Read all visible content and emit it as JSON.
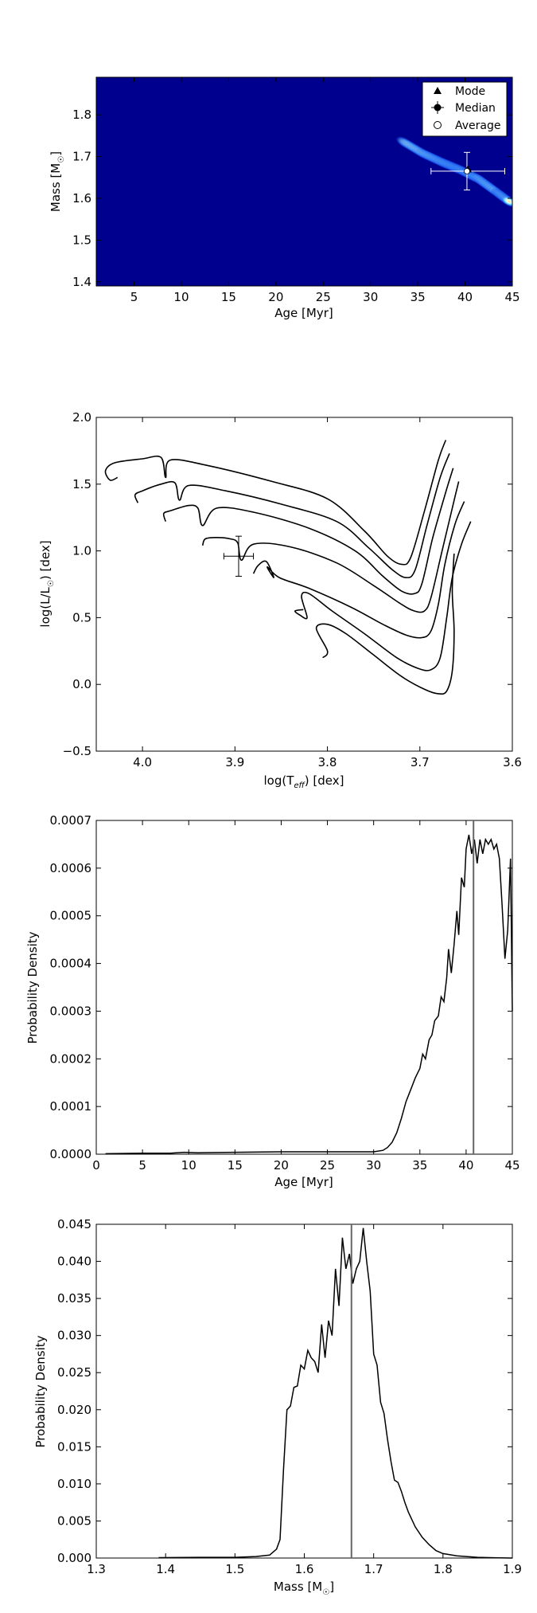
{
  "chart_data": [
    {
      "type": "heatmap",
      "xlabel": "Age [Myr]",
      "ylabel": "Mass [M",
      "ylabel_sub": "☉",
      "ylabel_end": "]",
      "xlim": [
        1,
        45
      ],
      "ylim": [
        1.39,
        1.89
      ],
      "xticks": [
        5,
        10,
        15,
        20,
        25,
        30,
        35,
        40,
        45
      ],
      "yticks": [
        1.4,
        1.5,
        1.6,
        1.7,
        1.8
      ],
      "background_color": "#00008f",
      "legend": {
        "placement": "top-right",
        "entries": [
          "Mode",
          "Median",
          "Average"
        ]
      },
      "band": [
        [
          33.5,
          1.735
        ],
        [
          35.5,
          1.708
        ],
        [
          37.5,
          1.687
        ],
        [
          39.5,
          1.668
        ],
        [
          41.5,
          1.645
        ],
        [
          43.5,
          1.612
        ],
        [
          44.8,
          1.59
        ]
      ],
      "band_weights": [
        0.2,
        0.55,
        0.85,
        1.0,
        0.9,
        0.7,
        0.5
      ],
      "markers": {
        "mode": {
          "x": 40.3,
          "y": 1.668
        },
        "median": {
          "x": 40.2,
          "y": 1.665,
          "xerr": [
            3.8,
            4.0
          ],
          "yerr": [
            0.045,
            0.045
          ]
        },
        "average": {
          "x": 40.2,
          "y": 1.665
        }
      }
    },
    {
      "type": "line",
      "xlabel": "log(T",
      "xlabel_sub": "eff",
      "xlabel_end": ") [dex]",
      "ylabel": "log(L/L",
      "ylabel_sub": "☉",
      "ylabel_end": ") [dex]",
      "xlim": [
        4.05,
        3.6
      ],
      "ylim": [
        -0.5,
        2.0
      ],
      "xticks": [
        4.0,
        3.9,
        3.8,
        3.7,
        3.6
      ],
      "yticks": [
        -0.5,
        0.0,
        0.5,
        1.0,
        1.5,
        2.0
      ],
      "tick_labels_x": [
        "4.0",
        "3.9",
        "3.8",
        "3.7",
        "3.6"
      ],
      "tick_labels_y": [
        "−0.5",
        "0.0",
        "0.5",
        "1.0",
        "1.5",
        "2.0"
      ],
      "series": [
        {
          "x": [
            4.027,
            4.035,
            4.04,
            4.03,
            4.0,
            3.98,
            3.975,
            3.97,
            3.93,
            3.86,
            3.8,
            3.76,
            3.735,
            3.72,
            3.71,
            3.695,
            3.68,
            3.672
          ],
          "y": [
            1.55,
            1.53,
            1.6,
            1.66,
            1.69,
            1.7,
            1.55,
            1.68,
            1.64,
            1.52,
            1.39,
            1.15,
            0.96,
            0.9,
            0.95,
            1.3,
            1.68,
            1.83
          ]
        },
        {
          "x": [
            4.005,
            4.008,
            4.0,
            3.98,
            3.965,
            3.96,
            3.95,
            3.91,
            3.85,
            3.79,
            3.755,
            3.73,
            3.715,
            3.705,
            3.692,
            3.678,
            3.668
          ],
          "y": [
            1.36,
            1.42,
            1.45,
            1.5,
            1.51,
            1.38,
            1.49,
            1.45,
            1.35,
            1.22,
            1.02,
            0.86,
            0.8,
            0.86,
            1.2,
            1.55,
            1.73
          ]
        },
        {
          "x": [
            3.975,
            3.977,
            3.97,
            3.95,
            3.94,
            3.935,
            3.92,
            3.88,
            3.82,
            3.77,
            3.74,
            3.72,
            3.706,
            3.698,
            3.686,
            3.672,
            3.664
          ],
          "y": [
            1.22,
            1.28,
            1.3,
            1.34,
            1.32,
            1.19,
            1.32,
            1.29,
            1.17,
            1.0,
            0.81,
            0.7,
            0.68,
            0.75,
            1.1,
            1.44,
            1.62
          ]
        },
        {
          "x": [
            3.935,
            3.932,
            3.92,
            3.905,
            3.897,
            3.893,
            3.88,
            3.84,
            3.79,
            3.75,
            3.72,
            3.706,
            3.695,
            3.688,
            3.676,
            3.665,
            3.658
          ],
          "y": [
            1.04,
            1.09,
            1.1,
            1.09,
            1.06,
            0.93,
            1.05,
            1.03,
            0.91,
            0.74,
            0.6,
            0.55,
            0.55,
            0.65,
            1.0,
            1.32,
            1.52
          ]
        },
        {
          "x": [
            3.88,
            3.875,
            3.866,
            3.858,
            3.865,
            3.852,
            3.82,
            3.775,
            3.74,
            3.715,
            3.698,
            3.688,
            3.68,
            3.673,
            3.662,
            3.652
          ],
          "y": [
            0.83,
            0.89,
            0.92,
            0.8,
            0.88,
            0.8,
            0.72,
            0.58,
            0.45,
            0.37,
            0.35,
            0.4,
            0.6,
            0.9,
            1.2,
            1.37
          ]
        },
        {
          "x": [
            3.826,
            3.835,
            3.83,
            3.822,
            3.828,
            3.82,
            3.795,
            3.76,
            3.725,
            3.702,
            3.688,
            3.678,
            3.671,
            3.665,
            3.655,
            3.645
          ],
          "y": [
            0.56,
            0.55,
            0.52,
            0.5,
            0.66,
            0.68,
            0.55,
            0.38,
            0.2,
            0.12,
            0.11,
            0.2,
            0.5,
            0.8,
            1.05,
            1.22
          ]
        },
        {
          "x": [
            3.805,
            3.8,
            3.812,
            3.8,
            3.78,
            3.75,
            3.72,
            3.694,
            3.68,
            3.671,
            3.665,
            3.663,
            3.665,
            3.663
          ],
          "y": [
            0.2,
            0.25,
            0.42,
            0.45,
            0.38,
            0.22,
            0.06,
            -0.04,
            -0.07,
            -0.05,
            0.1,
            0.4,
            0.7,
            0.98
          ]
        }
      ],
      "errorbar": {
        "x": 3.896,
        "y": 0.96,
        "xerr": 0.016,
        "yerr": 0.15
      }
    },
    {
      "type": "line",
      "xlabel": "Age [Myr]",
      "ylabel": "Probability Density",
      "xlim": [
        0,
        45
      ],
      "ylim": [
        0,
        0.0007
      ],
      "xticks": [
        0,
        5,
        10,
        15,
        20,
        25,
        30,
        35,
        40,
        45
      ],
      "yticks": [
        0,
        0.0001,
        0.0002,
        0.0003,
        0.0004,
        0.0005,
        0.0006,
        0.0007
      ],
      "tick_labels_y": [
        "0.0000",
        "0.0001",
        "0.0002",
        "0.0003",
        "0.0004",
        "0.0005",
        "0.0006",
        "0.0007"
      ],
      "vline": 40.8,
      "x": [
        1,
        5,
        8,
        9.5,
        11,
        15,
        20,
        25,
        30,
        31,
        31.5,
        32,
        32.5,
        33,
        33.5,
        34,
        34.5,
        35,
        35.3,
        35.6,
        36,
        36.3,
        36.6,
        37,
        37.3,
        37.6,
        37.9,
        38.1,
        38.4,
        38.7,
        39,
        39.2,
        39.5,
        39.8,
        40,
        40.3,
        40.6,
        40.9,
        41.2,
        41.5,
        41.8,
        42.1,
        42.4,
        42.7,
        43,
        43.3,
        43.6,
        43.9,
        44.2,
        44.5,
        44.8,
        45
      ],
      "y": [
        1e-06,
        2e-06,
        2e-06,
        4e-06,
        3e-06,
        4e-06,
        5e-06,
        5e-06,
        5e-06,
        8e-06,
        1.4e-05,
        2.5e-05,
        4.5e-05,
        7.5e-05,
        0.00011,
        0.000135,
        0.00016,
        0.00018,
        0.00021,
        0.0002,
        0.00024,
        0.00025,
        0.00028,
        0.00029,
        0.00033,
        0.00032,
        0.00037,
        0.00043,
        0.00038,
        0.00044,
        0.00051,
        0.00046,
        0.00058,
        0.00056,
        0.00064,
        0.00067,
        0.00063,
        0.00066,
        0.00061,
        0.00066,
        0.00063,
        0.00066,
        0.00065,
        0.00066,
        0.00064,
        0.00065,
        0.00062,
        0.00052,
        0.00041,
        0.00047,
        0.00062,
        0.0003
      ]
    },
    {
      "type": "line",
      "xlabel": "Mass [M",
      "xlabel_sub": "☉",
      "xlabel_end": "]",
      "ylabel": "Probability Density",
      "xlim": [
        1.3,
        1.9
      ],
      "ylim": [
        0,
        0.045
      ],
      "xticks": [
        1.3,
        1.4,
        1.5,
        1.6,
        1.7,
        1.8,
        1.9
      ],
      "yticks": [
        0,
        0.005,
        0.01,
        0.015,
        0.02,
        0.025,
        0.03,
        0.035,
        0.04,
        0.045
      ],
      "tick_labels_y": [
        "0.000",
        "0.005",
        "0.010",
        "0.015",
        "0.020",
        "0.025",
        "0.030",
        "0.035",
        "0.040",
        "0.045"
      ],
      "vline": 1.668,
      "x": [
        1.39,
        1.45,
        1.5,
        1.53,
        1.55,
        1.56,
        1.565,
        1.57,
        1.575,
        1.58,
        1.585,
        1.59,
        1.595,
        1.6,
        1.605,
        1.61,
        1.615,
        1.62,
        1.625,
        1.63,
        1.635,
        1.64,
        1.645,
        1.65,
        1.655,
        1.66,
        1.665,
        1.67,
        1.675,
        1.68,
        1.685,
        1.69,
        1.695,
        1.7,
        1.705,
        1.71,
        1.715,
        1.72,
        1.725,
        1.73,
        1.735,
        1.74,
        1.745,
        1.75,
        1.76,
        1.77,
        1.78,
        1.79,
        1.8,
        1.82,
        1.85,
        1.88,
        1.9
      ],
      "y": [
        5e-05,
        0.0001,
        0.0001,
        0.0002,
        0.0004,
        0.0012,
        0.0025,
        0.012,
        0.02,
        0.0205,
        0.023,
        0.0232,
        0.026,
        0.0255,
        0.028,
        0.027,
        0.0265,
        0.025,
        0.0315,
        0.027,
        0.032,
        0.03,
        0.039,
        0.034,
        0.0432,
        0.039,
        0.041,
        0.037,
        0.039,
        0.04,
        0.0445,
        0.04,
        0.036,
        0.0275,
        0.026,
        0.021,
        0.0195,
        0.016,
        0.013,
        0.0105,
        0.0102,
        0.009,
        0.0075,
        0.0062,
        0.0042,
        0.0028,
        0.0018,
        0.001,
        0.0006,
        0.0003,
        0.0001,
        3e-05,
        0.0
      ]
    }
  ]
}
